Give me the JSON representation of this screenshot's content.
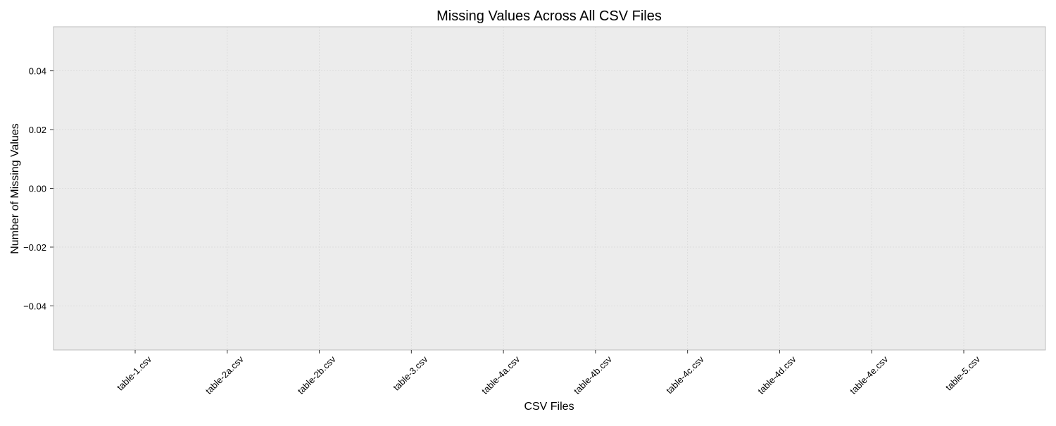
{
  "chart_data": {
    "type": "bar",
    "title": "Missing Values Across All CSV Files",
    "xlabel": "CSV Files",
    "ylabel": "Number of Missing Values",
    "categories": [
      "table-1.csv",
      "table-2a.csv",
      "table-2b.csv",
      "table-3.csv",
      "table-4a.csv",
      "table-4b.csv",
      "table-4c.csv",
      "table-4d.csv",
      "table-4e.csv",
      "table-5.csv"
    ],
    "values": [
      0,
      0,
      0,
      0,
      0,
      0,
      0,
      0,
      0,
      0
    ],
    "ylim": [
      -0.055,
      0.055
    ],
    "yticks": [
      -0.04,
      -0.02,
      0.0,
      0.02,
      0.04
    ],
    "ytick_labels": [
      "−0.04",
      "−0.02",
      "0.00",
      "0.02",
      "0.04"
    ],
    "grid": true,
    "colors": {
      "plot_background": "#ececec",
      "grid": "#d9d9d9",
      "frame": "#bdbdbd",
      "bar": "#1f77b4"
    }
  }
}
